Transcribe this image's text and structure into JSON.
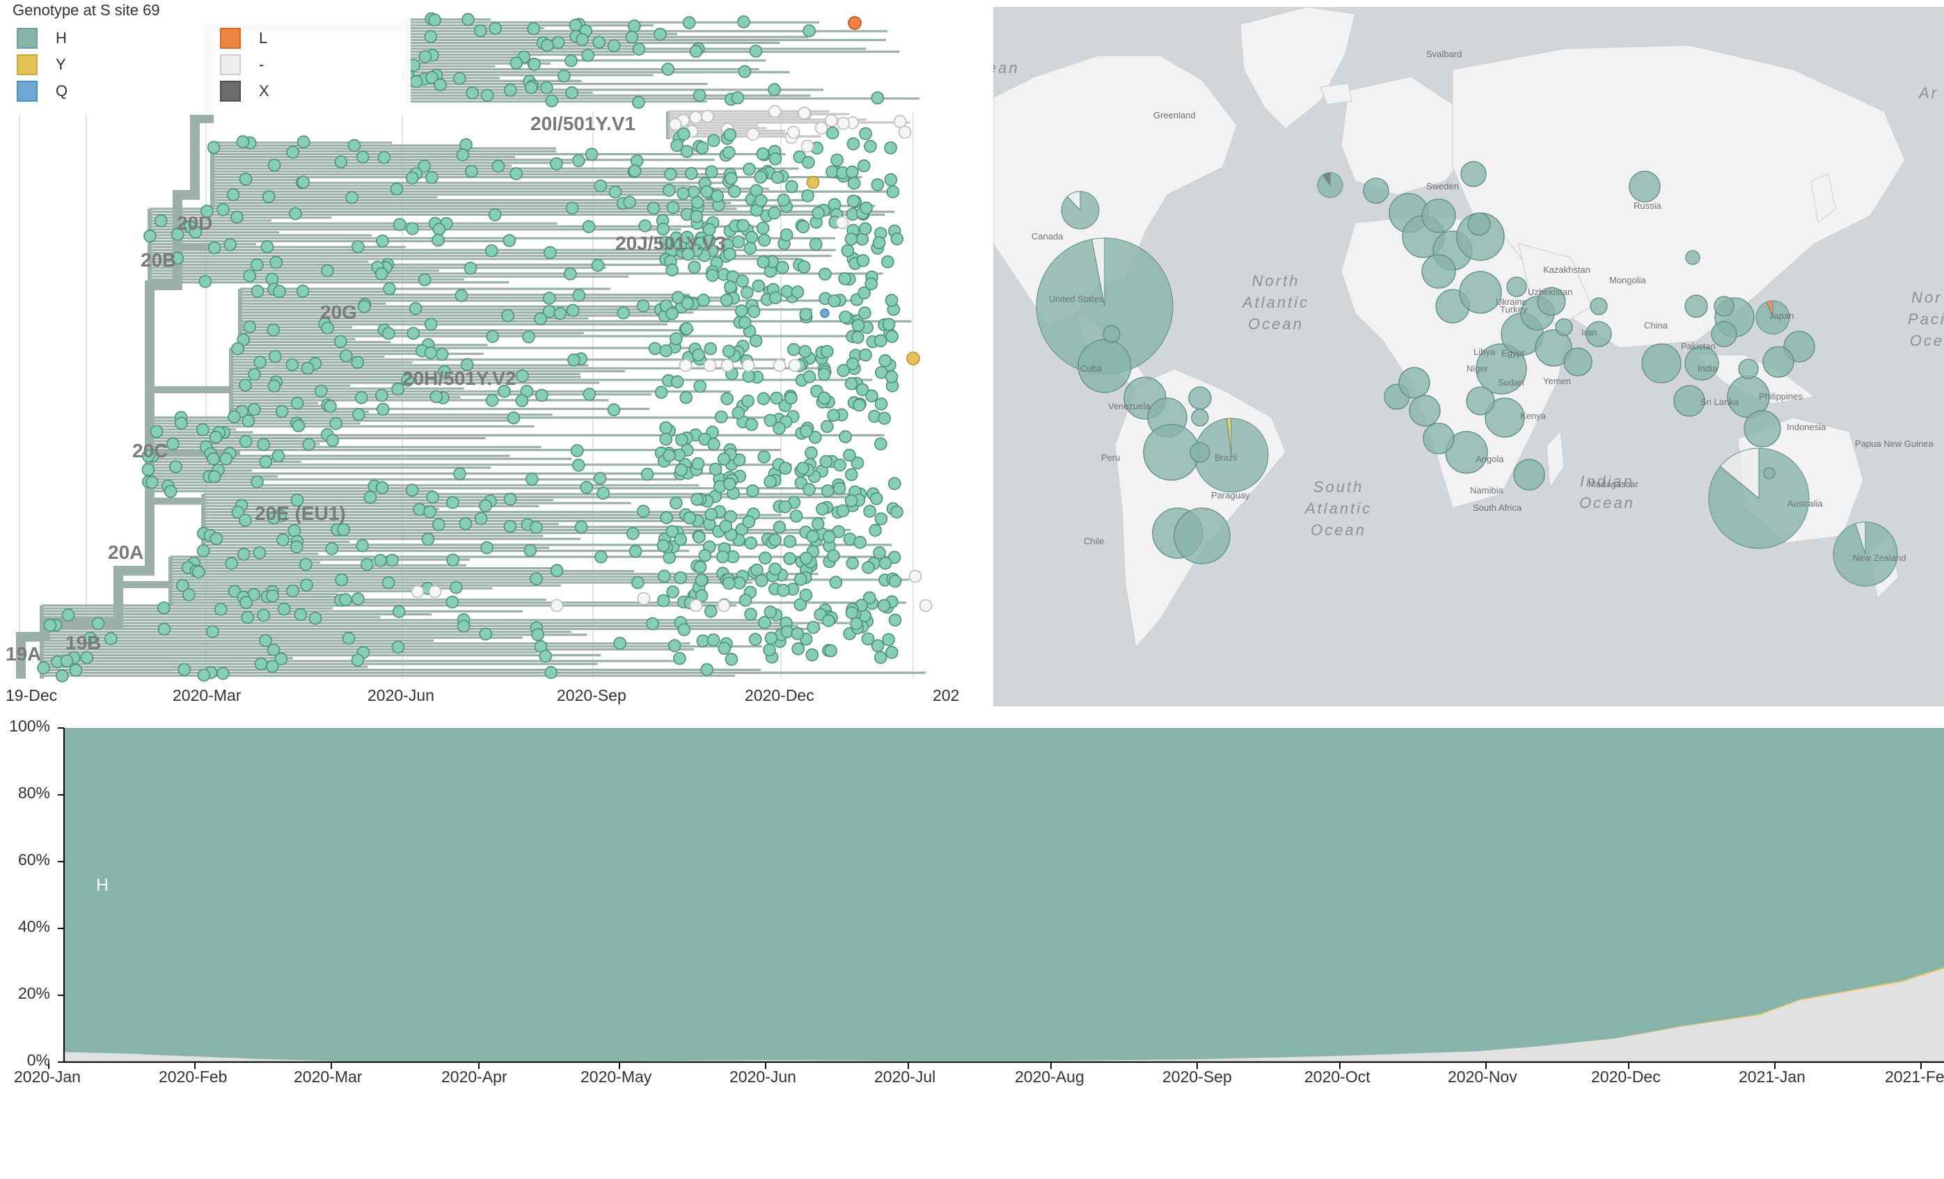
{
  "colors": {
    "H": "#87b4aa",
    "H_tip": "#86cfb5",
    "Y": "#e3c257",
    "Q": "#6ea8d2",
    "L": "#ee8443",
    "dash": "#eeeeee",
    "X": "#6b6b6b",
    "branch": "#9cb0ab",
    "missing_branch": "#c8c8c8",
    "map_land": "#f2f2f2",
    "map_ocean": "#d3d6d8"
  },
  "tree": {
    "legend_title": "Genotype at S site 69",
    "legend": [
      {
        "label": "H",
        "color": "#87b4aa",
        "icon": "teal-square"
      },
      {
        "label": "Y",
        "color": "#e3c257",
        "icon": "yellow-square"
      },
      {
        "label": "Q",
        "color": "#6ea8d2",
        "icon": "blue-square"
      },
      {
        "label": "L",
        "color": "#ee8443",
        "icon": "orange-square"
      },
      {
        "label": "-",
        "color": "#eeeeee",
        "icon": "white-square"
      },
      {
        "label": "X",
        "color": "#6b6b6b",
        "icon": "gray-square"
      }
    ],
    "clades": [
      {
        "label": "20I/501Y.V1"
      },
      {
        "label": "20J/501Y.V3"
      },
      {
        "label": "20D"
      },
      {
        "label": "20B"
      },
      {
        "label": "20G"
      },
      {
        "label": "20H/501Y.V2"
      },
      {
        "label": "20C"
      },
      {
        "label": "20E (EU1)"
      },
      {
        "label": "20A"
      },
      {
        "label": "19B"
      },
      {
        "label": "19A"
      }
    ],
    "x_ticks": [
      "19-Dec",
      "2020-Mar",
      "2020-Jun",
      "2020-Sep",
      "2020-Dec",
      "202"
    ]
  },
  "map": {
    "ocean_labels": [
      {
        "text": "North\nAtlantic\nOcean"
      },
      {
        "text": "South\nAtlantic\nOcean"
      },
      {
        "text": "Indian\nOcean"
      },
      {
        "text": "Nor\nPaci\nOce"
      },
      {
        "text": "Ar"
      },
      {
        "text": "ean"
      }
    ],
    "country_labels": [
      "Greenland",
      "Svalbard",
      "Sweden",
      "Russia",
      "Canada",
      "United States",
      "Kazakhstan",
      "Mongolia",
      "Uzbekistan",
      "China",
      "Japan",
      "Ukraine",
      "Turkey",
      "Libya",
      "Egypt",
      "Sudan",
      "Niger",
      "Yemen",
      "Kenya",
      "Angola",
      "Namibia",
      "South Africa",
      "Madagascar",
      "Cuba",
      "Venezuela",
      "Peru",
      "Brazil",
      "Paraguay",
      "India",
      "Pakistan",
      "Sri Lanka",
      "Philippines",
      "Indonesia",
      "Papua New Guinea",
      "Australia",
      "New Zealand",
      "Iran",
      "Chile"
    ],
    "pies": [
      {
        "name": "United States",
        "H": 0.97,
        "dash": 0.03
      },
      {
        "name": "Australia",
        "H": 0.86,
        "dash": 0.14
      },
      {
        "name": "Brazil",
        "H": 0.98,
        "Y": 0.02
      },
      {
        "name": "New Zealand",
        "H": 0.95,
        "dash": 0.05
      },
      {
        "name": "Japan",
        "H": 0.94,
        "L": 0.06
      },
      {
        "name": "Iceland",
        "H": 0.9,
        "X": 0.1
      },
      {
        "name": "Canada",
        "H": 0.88,
        "dash": 0.12
      }
    ]
  },
  "frequencies": {
    "y_ticks": [
      "100%",
      "80%",
      "60%",
      "40%",
      "20%",
      "0%"
    ],
    "x_ticks": [
      "2020-Jan",
      "2020-Feb",
      "2020-Mar",
      "2020-Apr",
      "2020-May",
      "2020-Jun",
      "2020-Jul",
      "2020-Aug",
      "2020-Sep",
      "2020-Oct",
      "2020-Nov",
      "2020-Dec",
      "2021-Jan",
      "2021-Fe"
    ],
    "stream_label": "H"
  },
  "chart_data": {
    "type": "area",
    "title": "",
    "xlabel": "",
    "ylabel": "",
    "ylim": [
      0,
      100
    ],
    "x": [
      "2020-01-01",
      "2020-01-15",
      "2020-02-01",
      "2020-02-15",
      "2020-03-01",
      "2020-04-01",
      "2020-05-01",
      "2020-06-01",
      "2020-07-01",
      "2020-08-01",
      "2020-09-01",
      "2020-10-01",
      "2020-11-01",
      "2020-11-15",
      "2020-12-01",
      "2020-12-15",
      "2021-01-01",
      "2021-01-10",
      "2021-02-01",
      "2021-02-10"
    ],
    "series": [
      {
        "name": "-",
        "values": [
          3,
          2.5,
          1.5,
          0.8,
          0.3,
          0.3,
          0.3,
          0.6,
          0.4,
          0.4,
          0.8,
          1.8,
          3.2,
          4.8,
          7,
          10.5,
          14,
          18.5,
          24,
          28
        ]
      },
      {
        "name": "Y",
        "values": [
          0,
          0,
          0,
          0,
          0,
          0,
          0,
          0,
          0,
          0,
          0,
          0,
          0,
          0,
          0.1,
          0.2,
          0.3,
          0.3,
          0.4,
          0.4
        ]
      },
      {
        "name": "H",
        "values": [
          97,
          97.5,
          98.5,
          99.2,
          99.7,
          99.7,
          99.7,
          99.4,
          99.6,
          99.6,
          99.2,
          98.2,
          96.8,
          95.2,
          92.9,
          89.3,
          85.7,
          81.2,
          75.6,
          71.6
        ]
      }
    ]
  }
}
